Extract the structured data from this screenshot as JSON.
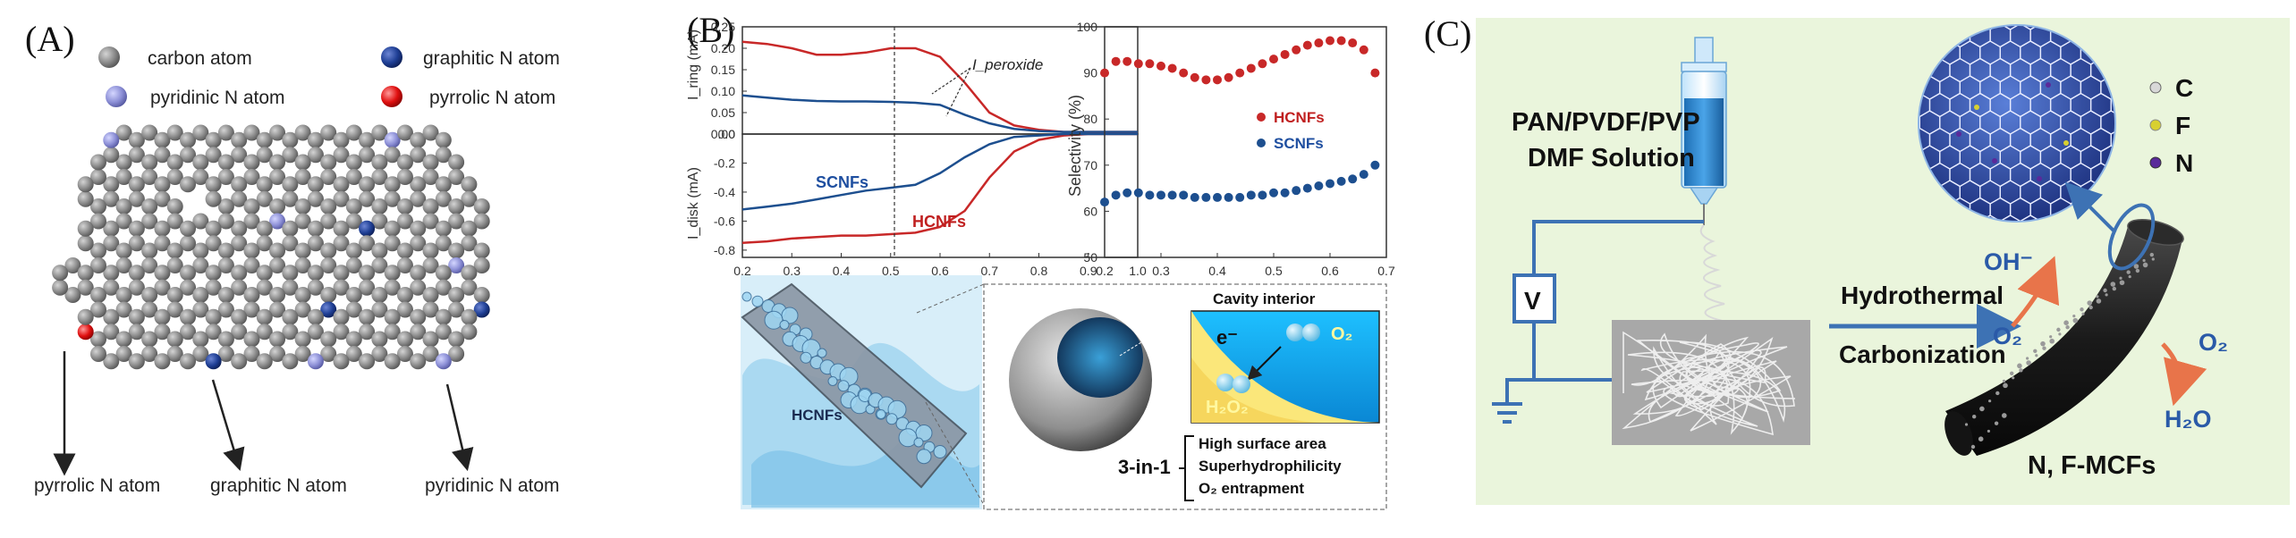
{
  "panel_a": {
    "label": "(A)",
    "legend": {
      "carbon": "carbon atom",
      "graphitic": "graphitic N atom",
      "pyridinic": "pyridinic N atom",
      "pyrrolic": "pyrrolic N atom"
    },
    "annotations": {
      "pyrrolic": "pyrrolic N atom",
      "graphitic": "graphitic N atom",
      "pyridinic": "pyridinic N atom"
    },
    "colors": {
      "carbon": "#8a8a8a",
      "graphitic": "#1f3f95",
      "pyridinic": "#8c8fd6",
      "pyrrolic": "#e01010"
    }
  },
  "panel_b": {
    "label": "(B)",
    "ring_chart": {
      "ylabel": "I_ring (mA)",
      "yticks": [
        "0.25",
        "0.20",
        "0.15",
        "0.10",
        "0.05",
        "0.00"
      ],
      "annotation": "I_peroxide",
      "ylim": [
        0,
        0.25
      ]
    },
    "disk_chart": {
      "ylabel": "I_disk (mA)",
      "yticks": [
        "0.0",
        "-0.2",
        "-0.4",
        "-0.6",
        "-0.8"
      ],
      "xticks": [
        "0.2",
        "0.3",
        "0.4",
        "0.5",
        "0.6",
        "0.7",
        "0.8",
        "0.9",
        "1.0"
      ],
      "label_scnf": "SCNFs",
      "label_hcnf": "HCNFs",
      "ylim": [
        -0.85,
        0
      ]
    },
    "selectivity_chart": {
      "ylabel": "Selectivity (%)",
      "yticks": [
        "100",
        "90",
        "80",
        "70",
        "60",
        "50"
      ],
      "xticks": [
        "0.2",
        "0.3",
        "0.4",
        "0.5",
        "0.6",
        "0.7"
      ],
      "legend_hcnf": "HCNFs",
      "legend_scnf": "SCNFs",
      "ylim": [
        50,
        100
      ]
    },
    "illustration": {
      "fiber_label": "HCNFs",
      "cavity_title": "Cavity interior",
      "electron": "e⁻",
      "o2": "O₂",
      "h2o2": "H₂O₂",
      "three_in_one": "3-in-1",
      "features": [
        "High surface area",
        "Superhydrophilicity",
        "O₂ entrapment"
      ]
    }
  },
  "panel_c": {
    "label": "(C)",
    "solution_line1": "PAN/PVDF/PVP",
    "solution_line2": "DMF Solution",
    "voltage": "V",
    "process_top": "Hydrothermal",
    "process_bottom": "Carbonization",
    "oh": "OH⁻",
    "o2_left": "O₂",
    "o2_right": "O₂",
    "h2o": "H₂O",
    "product": "N, F-MCFs",
    "legend": {
      "c": "C",
      "f": "F",
      "n": "N"
    },
    "colors": {
      "background": "#eaf5dc",
      "wire": "#3d72b4",
      "fiber": "#1d1d1d",
      "arrow": "#e8744a"
    }
  },
  "chart_data": [
    {
      "type": "line",
      "title": "",
      "xlabel": "",
      "ylabel": "I_ring (mA)",
      "xlim": [
        0.2,
        1.0
      ],
      "ylim": [
        0.0,
        0.25
      ],
      "series": [
        {
          "name": "HCNFs",
          "x": [
            0.2,
            0.25,
            0.3,
            0.35,
            0.4,
            0.45,
            0.5,
            0.55,
            0.6,
            0.65,
            0.7,
            0.75,
            0.8,
            0.85,
            0.9,
            1.0
          ],
          "y": [
            0.215,
            0.21,
            0.2,
            0.185,
            0.185,
            0.19,
            0.2,
            0.2,
            0.18,
            0.12,
            0.05,
            0.02,
            0.01,
            0.005,
            0.005,
            0.005
          ]
        },
        {
          "name": "SCNFs",
          "x": [
            0.2,
            0.25,
            0.3,
            0.35,
            0.4,
            0.45,
            0.5,
            0.55,
            0.6,
            0.65,
            0.7,
            0.75,
            0.8,
            0.85,
            0.9,
            1.0
          ],
          "y": [
            0.09,
            0.085,
            0.08,
            0.077,
            0.076,
            0.076,
            0.075,
            0.073,
            0.068,
            0.045,
            0.025,
            0.012,
            0.007,
            0.005,
            0.005,
            0.005
          ]
        }
      ]
    },
    {
      "type": "line",
      "title": "",
      "xlabel": "",
      "ylabel": "I_disk (mA)",
      "xlim": [
        0.2,
        1.0
      ],
      "ylim": [
        -0.85,
        0.0
      ],
      "series": [
        {
          "name": "HCNFs",
          "x": [
            0.2,
            0.25,
            0.3,
            0.35,
            0.4,
            0.45,
            0.5,
            0.55,
            0.6,
            0.65,
            0.7,
            0.75,
            0.8,
            0.85,
            0.9,
            1.0
          ],
          "y": [
            -0.75,
            -0.74,
            -0.72,
            -0.71,
            -0.7,
            -0.7,
            -0.69,
            -0.68,
            -0.64,
            -0.53,
            -0.3,
            -0.12,
            -0.04,
            -0.01,
            0.0,
            0.0
          ]
        },
        {
          "name": "SCNFs",
          "x": [
            0.2,
            0.25,
            0.3,
            0.35,
            0.4,
            0.45,
            0.5,
            0.55,
            0.6,
            0.65,
            0.7,
            0.75,
            0.8,
            0.85,
            0.9,
            1.0
          ],
          "y": [
            -0.52,
            -0.5,
            -0.48,
            -0.45,
            -0.42,
            -0.39,
            -0.37,
            -0.35,
            -0.27,
            -0.16,
            -0.07,
            -0.02,
            -0.01,
            0.0,
            0.0,
            0.0
          ]
        }
      ]
    },
    {
      "type": "scatter",
      "title": "",
      "xlabel": "",
      "ylabel": "Selectivity (%)",
      "xlim": [
        0.2,
        0.7
      ],
      "ylim": [
        50,
        100
      ],
      "series": [
        {
          "name": "HCNFs",
          "x": [
            0.2,
            0.22,
            0.24,
            0.26,
            0.28,
            0.3,
            0.32,
            0.34,
            0.36,
            0.38,
            0.4,
            0.42,
            0.44,
            0.46,
            0.48,
            0.5,
            0.52,
            0.54,
            0.56,
            0.58,
            0.6,
            0.62,
            0.64,
            0.66,
            0.68
          ],
          "y": [
            90,
            92.5,
            92.5,
            92,
            92,
            91.5,
            91,
            90,
            89,
            88.5,
            88.5,
            89,
            90,
            91,
            92,
            93,
            94,
            95,
            96,
            96.5,
            97,
            97,
            96.5,
            95,
            90
          ]
        },
        {
          "name": "SCNFs",
          "x": [
            0.2,
            0.22,
            0.24,
            0.26,
            0.28,
            0.3,
            0.32,
            0.34,
            0.36,
            0.38,
            0.4,
            0.42,
            0.44,
            0.46,
            0.48,
            0.5,
            0.52,
            0.54,
            0.56,
            0.58,
            0.6,
            0.62,
            0.64,
            0.66,
            0.68
          ],
          "y": [
            62,
            63.5,
            64,
            64,
            63.5,
            63.5,
            63.5,
            63.5,
            63,
            63,
            63,
            63,
            63,
            63.5,
            63.5,
            64,
            64,
            64.5,
            65,
            65.5,
            66,
            66.5,
            67,
            68,
            70
          ]
        }
      ]
    }
  ]
}
